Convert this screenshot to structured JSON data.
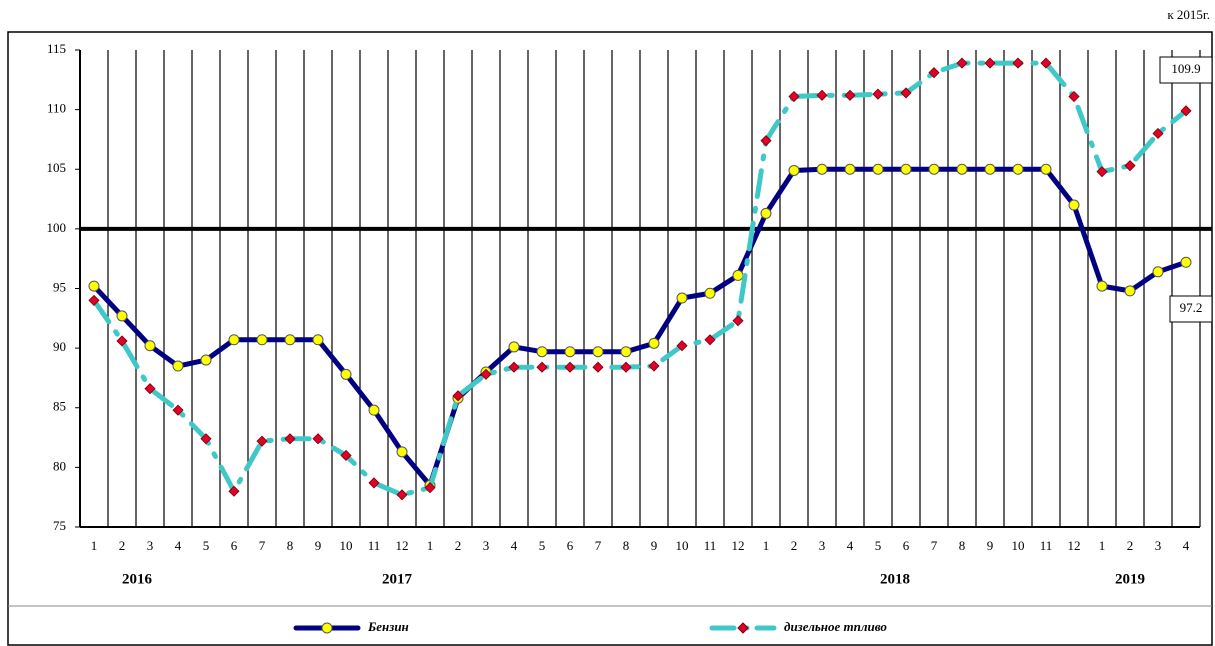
{
  "chart_data": {
    "type": "line",
    "unit_note": "к 2015г.",
    "categories": [
      "1",
      "2",
      "3",
      "4",
      "5",
      "6",
      "7",
      "8",
      "9",
      "10",
      "11",
      "12",
      "1",
      "2",
      "3",
      "4",
      "5",
      "6",
      "7",
      "8",
      "9",
      "10",
      "11",
      "12",
      "1",
      "2",
      "3",
      "4",
      "5",
      "6",
      "7",
      "8",
      "9",
      "10",
      "11",
      "12",
      "1",
      "2",
      "3",
      "4"
    ],
    "year_labels": [
      "2016",
      "2017",
      "2018",
      "2019"
    ],
    "series": [
      {
        "name": "Бензин",
        "color": "#000080",
        "marker_color": "#ffff00",
        "values": [
          95.2,
          92.7,
          90.2,
          88.5,
          89.0,
          90.7,
          90.7,
          90.7,
          90.7,
          87.8,
          84.8,
          81.3,
          78.5,
          85.8,
          88.0,
          90.1,
          89.7,
          89.7,
          89.7,
          89.7,
          90.4,
          94.2,
          94.6,
          96.1,
          101.3,
          104.9,
          105.0,
          105.0,
          105.0,
          105.0,
          105.0,
          105.0,
          105.0,
          105.0,
          105.0,
          102.0,
          95.2,
          94.8,
          96.4,
          97.2
        ]
      },
      {
        "name": "дизельное тпливо",
        "color": "#40c8c8",
        "marker_color": "#e0002a",
        "values": [
          94.0,
          90.6,
          86.6,
          84.8,
          82.4,
          78.0,
          82.2,
          82.4,
          82.4,
          81.0,
          78.7,
          77.7,
          78.3,
          86.0,
          87.8,
          88.4,
          88.4,
          88.4,
          88.4,
          88.4,
          88.5,
          90.2,
          90.7,
          92.3,
          107.4,
          111.1,
          111.2,
          111.2,
          111.3,
          111.4,
          113.1,
          113.9,
          113.9,
          113.9,
          113.9,
          111.1,
          104.8,
          105.3,
          108.0,
          109.9
        ]
      }
    ],
    "reference_line": 100,
    "ylim": [
      75,
      115
    ],
    "yticks": [
      75,
      80,
      85,
      90,
      95,
      100,
      105,
      110,
      115
    ],
    "grid": true
  }
}
